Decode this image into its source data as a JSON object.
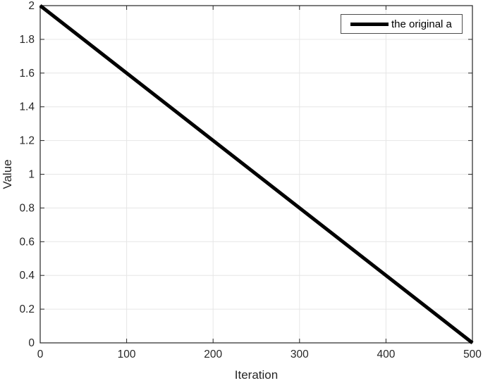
{
  "chart_data": {
    "type": "line",
    "title": "",
    "xlabel": "Iteration",
    "ylabel": "Value",
    "xlim": [
      0,
      500
    ],
    "ylim": [
      0,
      2
    ],
    "x_ticks": [
      0,
      100,
      200,
      300,
      400,
      500
    ],
    "y_ticks": [
      0,
      0.2,
      0.4,
      0.6,
      0.8,
      1,
      1.2,
      1.4,
      1.6,
      1.8,
      2
    ],
    "grid": true,
    "legend_position": "top-right",
    "series": [
      {
        "name": "the original a",
        "color": "#000000",
        "line_width": 5,
        "x": [
          0,
          500
        ],
        "y": [
          2,
          0
        ]
      }
    ]
  },
  "colors": {
    "background": "#ffffff",
    "axis": "#262626",
    "grid": "#e6e6e6",
    "tick_label": "#262626",
    "legend_border": "#4d4d4d"
  }
}
